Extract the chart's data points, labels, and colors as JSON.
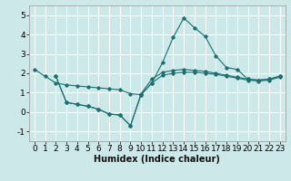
{
  "xlabel": "Humidex (Indice chaleur)",
  "xlim": [
    -0.5,
    23.5
  ],
  "ylim": [
    -1.5,
    5.5
  ],
  "yticks": [
    -1,
    0,
    1,
    2,
    3,
    4,
    5
  ],
  "xticks": [
    0,
    1,
    2,
    3,
    4,
    5,
    6,
    7,
    8,
    9,
    10,
    11,
    12,
    13,
    14,
    15,
    16,
    17,
    18,
    19,
    20,
    21,
    22,
    23
  ],
  "bg_color": "#cce8e8",
  "grid_color": "#ffffff",
  "line_color": "#1a7070",
  "lines": [
    {
      "x": [
        0,
        1,
        2,
        3,
        4,
        5,
        6,
        7,
        8,
        9,
        10,
        11,
        12,
        13,
        14,
        15,
        16,
        17,
        18,
        19,
        20,
        21,
        22,
        23
      ],
      "y": [
        2.2,
        1.85,
        1.5,
        1.4,
        1.35,
        1.3,
        1.25,
        1.2,
        1.15,
        0.95,
        0.9,
        1.5,
        2.55,
        3.85,
        4.85,
        4.35,
        3.9,
        2.9,
        2.3,
        2.2,
        1.7,
        1.65,
        1.7,
        1.85
      ]
    },
    {
      "x": [
        2,
        3,
        4,
        5,
        6,
        7,
        8,
        9,
        10,
        11,
        12,
        13,
        14,
        15,
        16,
        17,
        18,
        19,
        20,
        21,
        22,
        23
      ],
      "y": [
        1.85,
        0.5,
        0.4,
        0.3,
        0.15,
        -0.1,
        -0.15,
        -0.7,
        0.95,
        1.7,
        2.05,
        2.15,
        2.2,
        2.15,
        2.1,
        2.0,
        1.9,
        1.8,
        1.7,
        1.65,
        1.7,
        1.85
      ]
    },
    {
      "x": [
        2,
        3,
        4,
        5,
        6,
        7,
        8,
        9,
        10,
        11,
        12,
        13,
        14,
        15,
        16,
        17,
        18,
        19,
        20,
        21,
        22,
        23
      ],
      "y": [
        1.85,
        0.5,
        0.4,
        0.3,
        0.15,
        -0.1,
        -0.15,
        -0.7,
        0.9,
        1.5,
        1.9,
        2.0,
        2.05,
        2.05,
        2.0,
        1.95,
        1.85,
        1.75,
        1.65,
        1.6,
        1.65,
        1.8
      ]
    }
  ],
  "xlabel_fontsize": 7,
  "tick_fontsize": 6.5,
  "xlabel_fontweight": "bold"
}
